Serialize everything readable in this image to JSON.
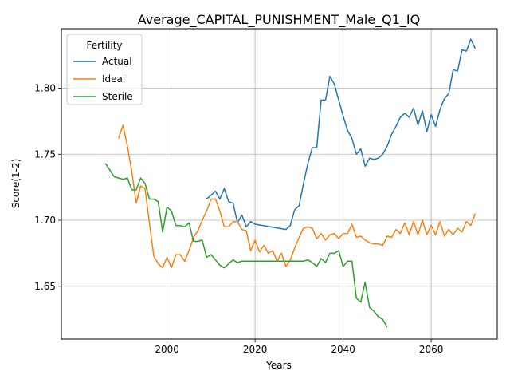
{
  "chart_data": {
    "type": "line",
    "title": "Average_CAPITAL_PUNISHMENT_Male_Q1_IQ",
    "xlabel": "Years",
    "ylabel": "Score(1-2)",
    "xlim": [
      1976,
      2075
    ],
    "ylim": [
      1.61,
      1.845
    ],
    "xticks": [
      2000,
      2020,
      2040,
      2060
    ],
    "yticks": [
      1.65,
      1.7,
      1.75,
      1.8
    ],
    "ytick_format": 2,
    "grid": true,
    "legend": {
      "title": "Fertility",
      "placement": "top-left"
    },
    "series": [
      {
        "name": "Actual",
        "color": "#1f77b4",
        "x": [
          2009,
          2010,
          2011,
          2012,
          2013,
          2014,
          2015,
          2016,
          2017,
          2018,
          2019,
          2020,
          2027,
          2028,
          2029,
          2030,
          2031,
          2032,
          2033,
          2034,
          2035,
          2036,
          2037,
          2038,
          2039,
          2040,
          2041,
          2042,
          2043,
          2044,
          2045,
          2046,
          2047,
          2048,
          2049,
          2050,
          2051,
          2052,
          2053,
          2054,
          2055,
          2056,
          2057,
          2058,
          2059,
          2060,
          2061,
          2062,
          2063,
          2064,
          2065,
          2066,
          2067,
          2068,
          2069,
          2070
        ],
        "values": [
          1.716,
          1.719,
          1.722,
          1.716,
          1.724,
          1.714,
          1.713,
          1.698,
          1.704,
          1.695,
          1.699,
          1.697,
          1.693,
          1.696,
          1.708,
          1.711,
          1.728,
          1.743,
          1.755,
          1.755,
          1.791,
          1.791,
          1.809,
          1.803,
          1.791,
          1.779,
          1.768,
          1.762,
          1.75,
          1.754,
          1.741,
          1.747,
          1.746,
          1.747,
          1.75,
          1.756,
          1.765,
          1.771,
          1.778,
          1.781,
          1.778,
          1.785,
          1.772,
          1.783,
          1.767,
          1.78,
          1.771,
          1.784,
          1.792,
          1.796,
          1.814,
          1.813,
          1.829,
          1.828,
          1.837,
          1.83
        ]
      },
      {
        "name": "Ideal",
        "color": "#ff7f0e",
        "x": [
          1989,
          1990,
          1991,
          1992,
          1993,
          1994,
          1995,
          1996,
          1997,
          1998,
          1999,
          2000,
          2001,
          2002,
          2003,
          2004,
          2005,
          2006,
          2007,
          2008,
          2009,
          2010,
          2011,
          2012,
          2013,
          2014,
          2015,
          2016,
          2017,
          2018,
          2019,
          2020,
          2021,
          2022,
          2023,
          2024,
          2025,
          2026,
          2027,
          2028,
          2029,
          2030,
          2031,
          2032,
          2033,
          2034,
          2035,
          2036,
          2037,
          2038,
          2039,
          2040,
          2041,
          2042,
          2043,
          2044,
          2045,
          2046,
          2047,
          2048,
          2049,
          2050,
          2051,
          2052,
          2053,
          2054,
          2055,
          2056,
          2057,
          2058,
          2059,
          2060,
          2061,
          2062,
          2063,
          2064,
          2065,
          2066,
          2067,
          2068,
          2069,
          2070
        ],
        "values": [
          1.762,
          1.772,
          1.756,
          1.737,
          1.713,
          1.726,
          1.724,
          1.698,
          1.673,
          1.667,
          1.664,
          1.672,
          1.664,
          1.674,
          1.674,
          1.669,
          1.677,
          1.687,
          1.692,
          1.7,
          1.707,
          1.716,
          1.716,
          1.707,
          1.695,
          1.695,
          1.699,
          1.699,
          1.693,
          1.692,
          1.677,
          1.685,
          1.676,
          1.681,
          1.675,
          1.677,
          1.669,
          1.675,
          1.665,
          1.67,
          1.679,
          1.687,
          1.694,
          1.695,
          1.694,
          1.686,
          1.69,
          1.685,
          1.689,
          1.69,
          1.686,
          1.69,
          1.69,
          1.697,
          1.687,
          1.688,
          1.685,
          1.683,
          1.682,
          1.682,
          1.681,
          1.688,
          1.687,
          1.693,
          1.69,
          1.698,
          1.689,
          1.699,
          1.689,
          1.7,
          1.689,
          1.696,
          1.689,
          1.699,
          1.688,
          1.693,
          1.689,
          1.694,
          1.691,
          1.699,
          1.696,
          1.705
        ]
      },
      {
        "name": "Sterile",
        "color": "#2ca02c",
        "x": [
          1986,
          1987,
          1988,
          1989,
          1990,
          1991,
          1992,
          1993,
          1994,
          1995,
          1996,
          1997,
          1998,
          1999,
          2000,
          2001,
          2002,
          2003,
          2004,
          2005,
          2006,
          2007,
          2008,
          2009,
          2010,
          2011,
          2012,
          2013,
          2014,
          2015,
          2016,
          2017,
          2018,
          2031,
          2032,
          2033,
          2034,
          2035,
          2036,
          2037,
          2038,
          2039,
          2040,
          2041,
          2042,
          2043,
          2044,
          2045,
          2046,
          2047,
          2048,
          2049,
          2050
        ],
        "values": [
          1.743,
          1.738,
          1.733,
          1.732,
          1.731,
          1.732,
          1.723,
          1.723,
          1.732,
          1.728,
          1.716,
          1.716,
          1.714,
          1.691,
          1.71,
          1.707,
          1.696,
          1.696,
          1.695,
          1.698,
          1.684,
          1.684,
          1.685,
          1.672,
          1.674,
          1.67,
          1.666,
          1.664,
          1.667,
          1.67,
          1.668,
          1.669,
          1.669,
          1.669,
          1.67,
          1.668,
          1.665,
          1.671,
          1.668,
          1.675,
          1.675,
          1.677,
          1.665,
          1.669,
          1.669,
          1.641,
          1.638,
          1.653,
          1.634,
          1.631,
          1.627,
          1.625,
          1.619
        ]
      }
    ]
  }
}
